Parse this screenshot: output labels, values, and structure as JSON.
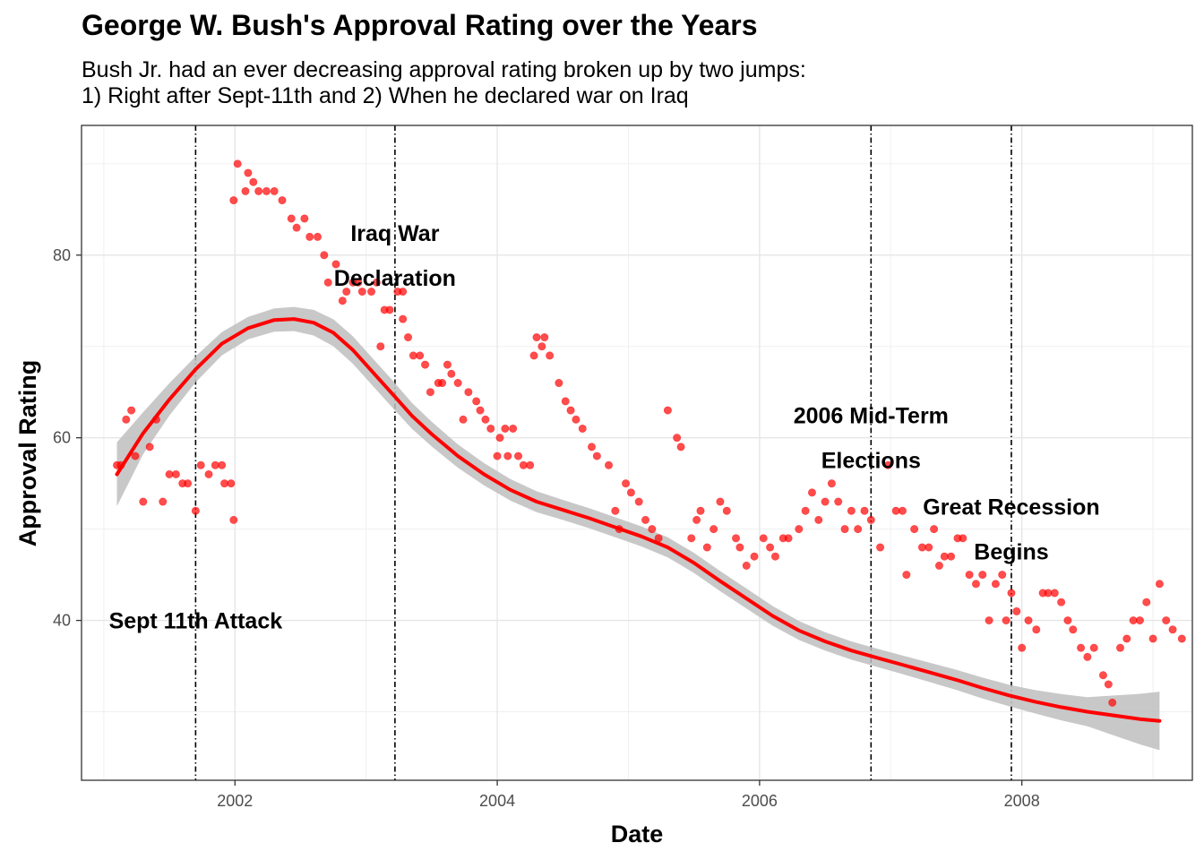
{
  "title": "George W. Bush's Approval Rating over the Years",
  "subtitle_lines": [
    "Bush Jr. had an ever decreasing approval rating broken up by two jumps:",
    "1) Right after Sept-11th and 2) When he declared war on Iraq"
  ],
  "chart_data": {
    "type": "scatter",
    "title": "George W. Bush's Approval Rating over the Years",
    "xlabel": "Date",
    "ylabel": "Approval Rating",
    "xlim": [
      2000.83,
      2009.3
    ],
    "ylim": [
      22.5,
      94.2
    ],
    "x_ticks": [
      2002,
      2004,
      2006,
      2008
    ],
    "x_tick_labels": [
      "2002",
      "2004",
      "2006",
      "2008"
    ],
    "y_ticks": [
      40,
      60,
      80
    ],
    "y_tick_labels": [
      "40",
      "60",
      "80"
    ],
    "grid": true,
    "point_color": "#ff0000",
    "smooth_color": "#ff0000",
    "ribbon_color": "#bebebe",
    "points": [
      [
        2001.1,
        57
      ],
      [
        2001.13,
        57
      ],
      [
        2001.17,
        62
      ],
      [
        2001.21,
        63
      ],
      [
        2001.24,
        58
      ],
      [
        2001.3,
        53
      ],
      [
        2001.35,
        59
      ],
      [
        2001.4,
        62
      ],
      [
        2001.45,
        53
      ],
      [
        2001.5,
        56
      ],
      [
        2001.55,
        56
      ],
      [
        2001.6,
        55
      ],
      [
        2001.64,
        55
      ],
      [
        2001.7,
        52
      ],
      [
        2001.74,
        57
      ],
      [
        2001.8,
        56
      ],
      [
        2001.85,
        57
      ],
      [
        2001.9,
        57
      ],
      [
        2001.92,
        55
      ],
      [
        2001.97,
        55
      ],
      [
        2001.99,
        51
      ],
      [
        2001.99,
        86
      ],
      [
        2002.02,
        90
      ],
      [
        2002.08,
        87
      ],
      [
        2002.1,
        89
      ],
      [
        2002.14,
        88
      ],
      [
        2002.18,
        87
      ],
      [
        2002.24,
        87
      ],
      [
        2002.3,
        87
      ],
      [
        2002.36,
        86
      ],
      [
        2002.43,
        84
      ],
      [
        2002.47,
        83
      ],
      [
        2002.53,
        84
      ],
      [
        2002.57,
        82
      ],
      [
        2002.63,
        82
      ],
      [
        2002.68,
        80
      ],
      [
        2002.71,
        77
      ],
      [
        2002.77,
        79
      ],
      [
        2002.82,
        75
      ],
      [
        2002.85,
        76
      ],
      [
        2002.9,
        77
      ],
      [
        2002.94,
        77
      ],
      [
        2002.97,
        76
      ],
      [
        2003.04,
        76
      ],
      [
        2003.08,
        77
      ],
      [
        2003.11,
        70
      ],
      [
        2003.14,
        74
      ],
      [
        2003.18,
        74
      ],
      [
        2003.24,
        76
      ],
      [
        2003.28,
        76
      ],
      [
        2003.28,
        73
      ],
      [
        2003.32,
        71
      ],
      [
        2003.36,
        69
      ],
      [
        2003.41,
        69
      ],
      [
        2003.45,
        68
      ],
      [
        2003.49,
        65
      ],
      [
        2003.55,
        66
      ],
      [
        2003.58,
        66
      ],
      [
        2003.62,
        68
      ],
      [
        2003.65,
        67
      ],
      [
        2003.7,
        66
      ],
      [
        2003.74,
        62
      ],
      [
        2003.78,
        65
      ],
      [
        2003.84,
        64
      ],
      [
        2003.87,
        63
      ],
      [
        2003.91,
        62
      ],
      [
        2003.95,
        61
      ],
      [
        2004.0,
        58
      ],
      [
        2004.02,
        60
      ],
      [
        2004.06,
        61
      ],
      [
        2004.08,
        58
      ],
      [
        2004.12,
        61
      ],
      [
        2004.16,
        58
      ],
      [
        2004.2,
        57
      ],
      [
        2004.25,
        57
      ],
      [
        2004.28,
        69
      ],
      [
        2004.3,
        71
      ],
      [
        2004.34,
        70
      ],
      [
        2004.36,
        71
      ],
      [
        2004.4,
        69
      ],
      [
        2004.47,
        66
      ],
      [
        2004.52,
        64
      ],
      [
        2004.56,
        63
      ],
      [
        2004.6,
        62
      ],
      [
        2004.65,
        61
      ],
      [
        2004.72,
        59
      ],
      [
        2004.76,
        58
      ],
      [
        2004.85,
        57
      ],
      [
        2004.9,
        52
      ],
      [
        2004.93,
        50
      ],
      [
        2004.98,
        55
      ],
      [
        2005.02,
        54
      ],
      [
        2005.08,
        53
      ],
      [
        2005.13,
        51
      ],
      [
        2005.18,
        50
      ],
      [
        2005.23,
        49
      ],
      [
        2005.3,
        63
      ],
      [
        2005.37,
        60
      ],
      [
        2005.4,
        59
      ],
      [
        2005.48,
        49
      ],
      [
        2005.52,
        51
      ],
      [
        2005.55,
        52
      ],
      [
        2005.6,
        48
      ],
      [
        2005.65,
        50
      ],
      [
        2005.7,
        53
      ],
      [
        2005.75,
        52
      ],
      [
        2005.82,
        49
      ],
      [
        2005.85,
        48
      ],
      [
        2005.9,
        46
      ],
      [
        2005.96,
        47
      ],
      [
        2006.03,
        49
      ],
      [
        2006.08,
        48
      ],
      [
        2006.12,
        47
      ],
      [
        2006.18,
        49
      ],
      [
        2006.22,
        49
      ],
      [
        2006.3,
        50
      ],
      [
        2006.35,
        52
      ],
      [
        2006.4,
        54
      ],
      [
        2006.45,
        51
      ],
      [
        2006.5,
        53
      ],
      [
        2006.55,
        55
      ],
      [
        2006.6,
        53
      ],
      [
        2006.65,
        50
      ],
      [
        2006.7,
        52
      ],
      [
        2006.75,
        50
      ],
      [
        2006.8,
        52
      ],
      [
        2006.85,
        51
      ],
      [
        2006.92,
        48
      ],
      [
        2006.98,
        57
      ],
      [
        2007.04,
        52
      ],
      [
        2007.09,
        52
      ],
      [
        2007.12,
        45
      ],
      [
        2007.18,
        50
      ],
      [
        2007.24,
        48
      ],
      [
        2007.29,
        48
      ],
      [
        2007.33,
        50
      ],
      [
        2007.37,
        46
      ],
      [
        2007.41,
        47
      ],
      [
        2007.46,
        47
      ],
      [
        2007.51,
        49
      ],
      [
        2007.55,
        49
      ],
      [
        2007.6,
        45
      ],
      [
        2007.65,
        44
      ],
      [
        2007.7,
        45
      ],
      [
        2007.75,
        40
      ],
      [
        2007.8,
        44
      ],
      [
        2007.85,
        45
      ],
      [
        2007.88,
        40
      ],
      [
        2007.92,
        43
      ],
      [
        2007.96,
        41
      ],
      [
        2008.0,
        37
      ],
      [
        2008.05,
        40
      ],
      [
        2008.11,
        39
      ],
      [
        2008.16,
        43
      ],
      [
        2008.2,
        43
      ],
      [
        2008.25,
        43
      ],
      [
        2008.3,
        42
      ],
      [
        2008.35,
        40
      ],
      [
        2008.39,
        39
      ],
      [
        2008.45,
        37
      ],
      [
        2008.5,
        36
      ],
      [
        2008.55,
        37
      ],
      [
        2008.62,
        34
      ],
      [
        2008.66,
        33
      ],
      [
        2008.69,
        31
      ],
      [
        2008.75,
        37
      ],
      [
        2008.8,
        38
      ],
      [
        2008.85,
        40
      ],
      [
        2008.9,
        40
      ],
      [
        2008.95,
        42
      ],
      [
        2009.0,
        38
      ],
      [
        2009.05,
        44
      ],
      [
        2009.1,
        40
      ],
      [
        2009.15,
        39
      ],
      [
        2009.22,
        38
      ]
    ],
    "smooth_line": [
      [
        2001.1,
        56.0
      ],
      [
        2001.3,
        60.5
      ],
      [
        2001.5,
        64.2
      ],
      [
        2001.7,
        67.5
      ],
      [
        2001.9,
        70.3
      ],
      [
        2002.1,
        72.0
      ],
      [
        2002.3,
        72.9
      ],
      [
        2002.45,
        73.0
      ],
      [
        2002.6,
        72.6
      ],
      [
        2002.75,
        71.5
      ],
      [
        2002.9,
        69.6
      ],
      [
        2003.05,
        67.2
      ],
      [
        2003.2,
        64.8
      ],
      [
        2003.35,
        62.4
      ],
      [
        2003.5,
        60.4
      ],
      [
        2003.7,
        58.0
      ],
      [
        2003.9,
        56.0
      ],
      [
        2004.1,
        54.3
      ],
      [
        2004.3,
        53.0
      ],
      [
        2004.5,
        52.1
      ],
      [
        2004.7,
        51.2
      ],
      [
        2004.9,
        50.2
      ],
      [
        2005.1,
        49.2
      ],
      [
        2005.3,
        48.0
      ],
      [
        2005.5,
        46.3
      ],
      [
        2005.7,
        44.3
      ],
      [
        2005.9,
        42.4
      ],
      [
        2006.1,
        40.5
      ],
      [
        2006.3,
        38.9
      ],
      [
        2006.5,
        37.7
      ],
      [
        2006.7,
        36.7
      ],
      [
        2006.9,
        35.9
      ],
      [
        2007.1,
        35.1
      ],
      [
        2007.3,
        34.3
      ],
      [
        2007.5,
        33.5
      ],
      [
        2007.7,
        32.6
      ],
      [
        2007.9,
        31.8
      ],
      [
        2008.1,
        31.1
      ],
      [
        2008.3,
        30.5
      ],
      [
        2008.5,
        30.0
      ],
      [
        2008.7,
        29.6
      ],
      [
        2008.9,
        29.2
      ],
      [
        2009.05,
        29.0
      ]
    ],
    "ribbon_halfwidth": [
      [
        2001.1,
        3.5
      ],
      [
        2001.3,
        2.3
      ],
      [
        2001.6,
        1.5
      ],
      [
        2002.0,
        1.2
      ],
      [
        2002.4,
        1.3
      ],
      [
        2002.8,
        1.5
      ],
      [
        2003.2,
        1.5
      ],
      [
        2003.6,
        1.3
      ],
      [
        2004.0,
        1.2
      ],
      [
        2004.5,
        1.1
      ],
      [
        2005.0,
        1.1
      ],
      [
        2005.5,
        1.1
      ],
      [
        2006.0,
        1.1
      ],
      [
        2006.5,
        1.0
      ],
      [
        2007.0,
        1.0
      ],
      [
        2007.5,
        1.1
      ],
      [
        2008.0,
        1.2
      ],
      [
        2008.5,
        1.6
      ],
      [
        2009.05,
        3.2
      ]
    ],
    "vlines": [
      {
        "x": 2001.7,
        "label": [
          "Sept 11th Attack"
        ],
        "label_y": 40
      },
      {
        "x": 2003.22,
        "label": [
          "Iraq War",
          "Declaration"
        ],
        "label_y": 80
      },
      {
        "x": 2006.85,
        "label": [
          "2006 Mid-Term",
          "Elections"
        ],
        "label_y": 60
      },
      {
        "x": 2007.92,
        "label": [
          "Great Recession",
          "Begins"
        ],
        "label_y": 50
      }
    ]
  }
}
